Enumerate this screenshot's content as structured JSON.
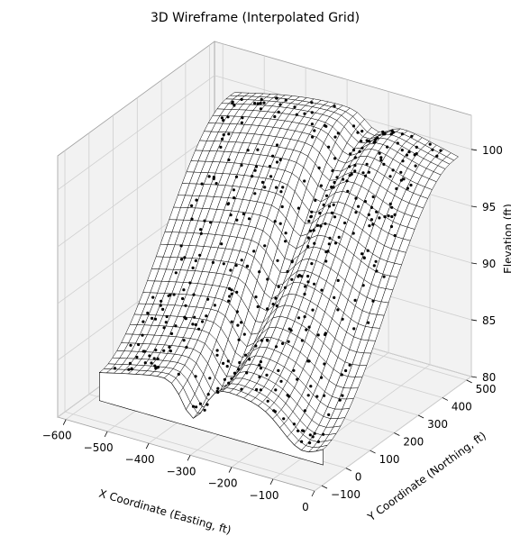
{
  "chart_data": {
    "type": "wireframe-3d",
    "title": "3D Wireframe (Interpolated Grid)",
    "xlabel": "X Coordinate (Easting, ft)",
    "ylabel": "Y Coordinate (Northing, ft)",
    "zlabel": "Elevation (ft)",
    "xlim": [
      -620,
      0
    ],
    "ylim": [
      -130,
      520
    ],
    "zlim": [
      80,
      103
    ],
    "xticks": [
      -600,
      -500,
      -400,
      -300,
      -200,
      -100,
      0
    ],
    "yticks": [
      -100,
      0,
      100,
      200,
      300,
      400,
      500
    ],
    "zticks": [
      80,
      85,
      90,
      95,
      100
    ],
    "xtick_labels": [
      "−600",
      "−500",
      "−400",
      "−300",
      "−200",
      "−100",
      "0"
    ],
    "ytick_labels": [
      "−100",
      "0",
      "100",
      "200",
      "300",
      "400",
      "500"
    ],
    "ztick_labels": [
      "80",
      "85",
      "90",
      "95",
      "100"
    ],
    "grid": true,
    "surface": {
      "x_range": [
        -560,
        -20
      ],
      "y_range": [
        -60,
        500
      ],
      "nx": 32,
      "ny": 32,
      "elevation_range": [
        81,
        101.5
      ],
      "line_color": "#000000",
      "face_color": "#ffffff"
    },
    "sample_points": {
      "description_count": 420,
      "marker_color": "#000000"
    },
    "colors": {
      "pane": "#f2f2f2",
      "grid": "#cfcfcf",
      "edge": "#a0a0a0"
    }
  }
}
